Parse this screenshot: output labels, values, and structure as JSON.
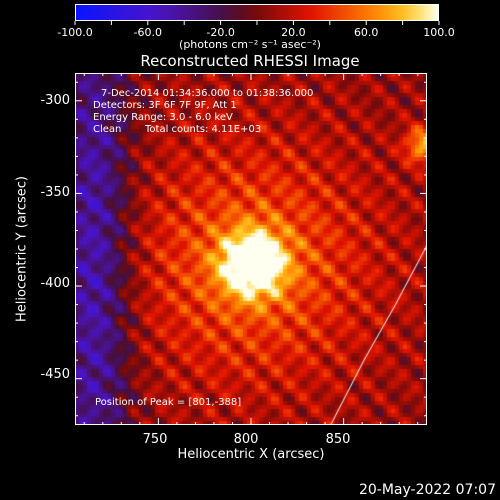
{
  "colorbar": {
    "tick_labels": [
      "-100.0",
      "-60.0",
      "-20.0",
      "20.0",
      "60.0",
      "100.0"
    ],
    "range": [
      -100,
      100
    ],
    "units": "(photons cm⁻² s⁻¹ asec⁻²)"
  },
  "chart_data": {
    "type": "heatmap",
    "title": "Reconstructed RHESSI Image",
    "xlabel": "Heliocentric X (arcsec)",
    "ylabel": "Heliocentric Y (arcsec)",
    "xlim": [
      705,
      895
    ],
    "ylim": [
      -475,
      -285
    ],
    "x_ticks": [
      750,
      800,
      850
    ],
    "y_ticks": [
      -300,
      -350,
      -400,
      -450
    ],
    "peak": {
      "x": 801,
      "y": -388,
      "value": 100
    },
    "secondary_source": {
      "x": 893,
      "y": -324,
      "value": 65
    },
    "negative_region": {
      "x": 715,
      "y": -390,
      "value": -40
    },
    "solar_limb": [
      [
        843,
        -475
      ],
      [
        861,
        -440
      ],
      [
        878,
        -410
      ],
      [
        895,
        -378
      ]
    ],
    "annotations": {
      "time_range": "7-Dec-2014 01:34:36.000 to 01:38:36.000",
      "detectors": "Detectors: 3F 6F 7F 9F, Att 1",
      "energy": "Energy Range: 3.0 - 6.0 keV",
      "method": "Clean",
      "total_counts": "Total counts: 4.11E+03",
      "peak_text": "Position of Peak = [801,-388]"
    }
  },
  "datestamp": "20-May-2022 07:07"
}
